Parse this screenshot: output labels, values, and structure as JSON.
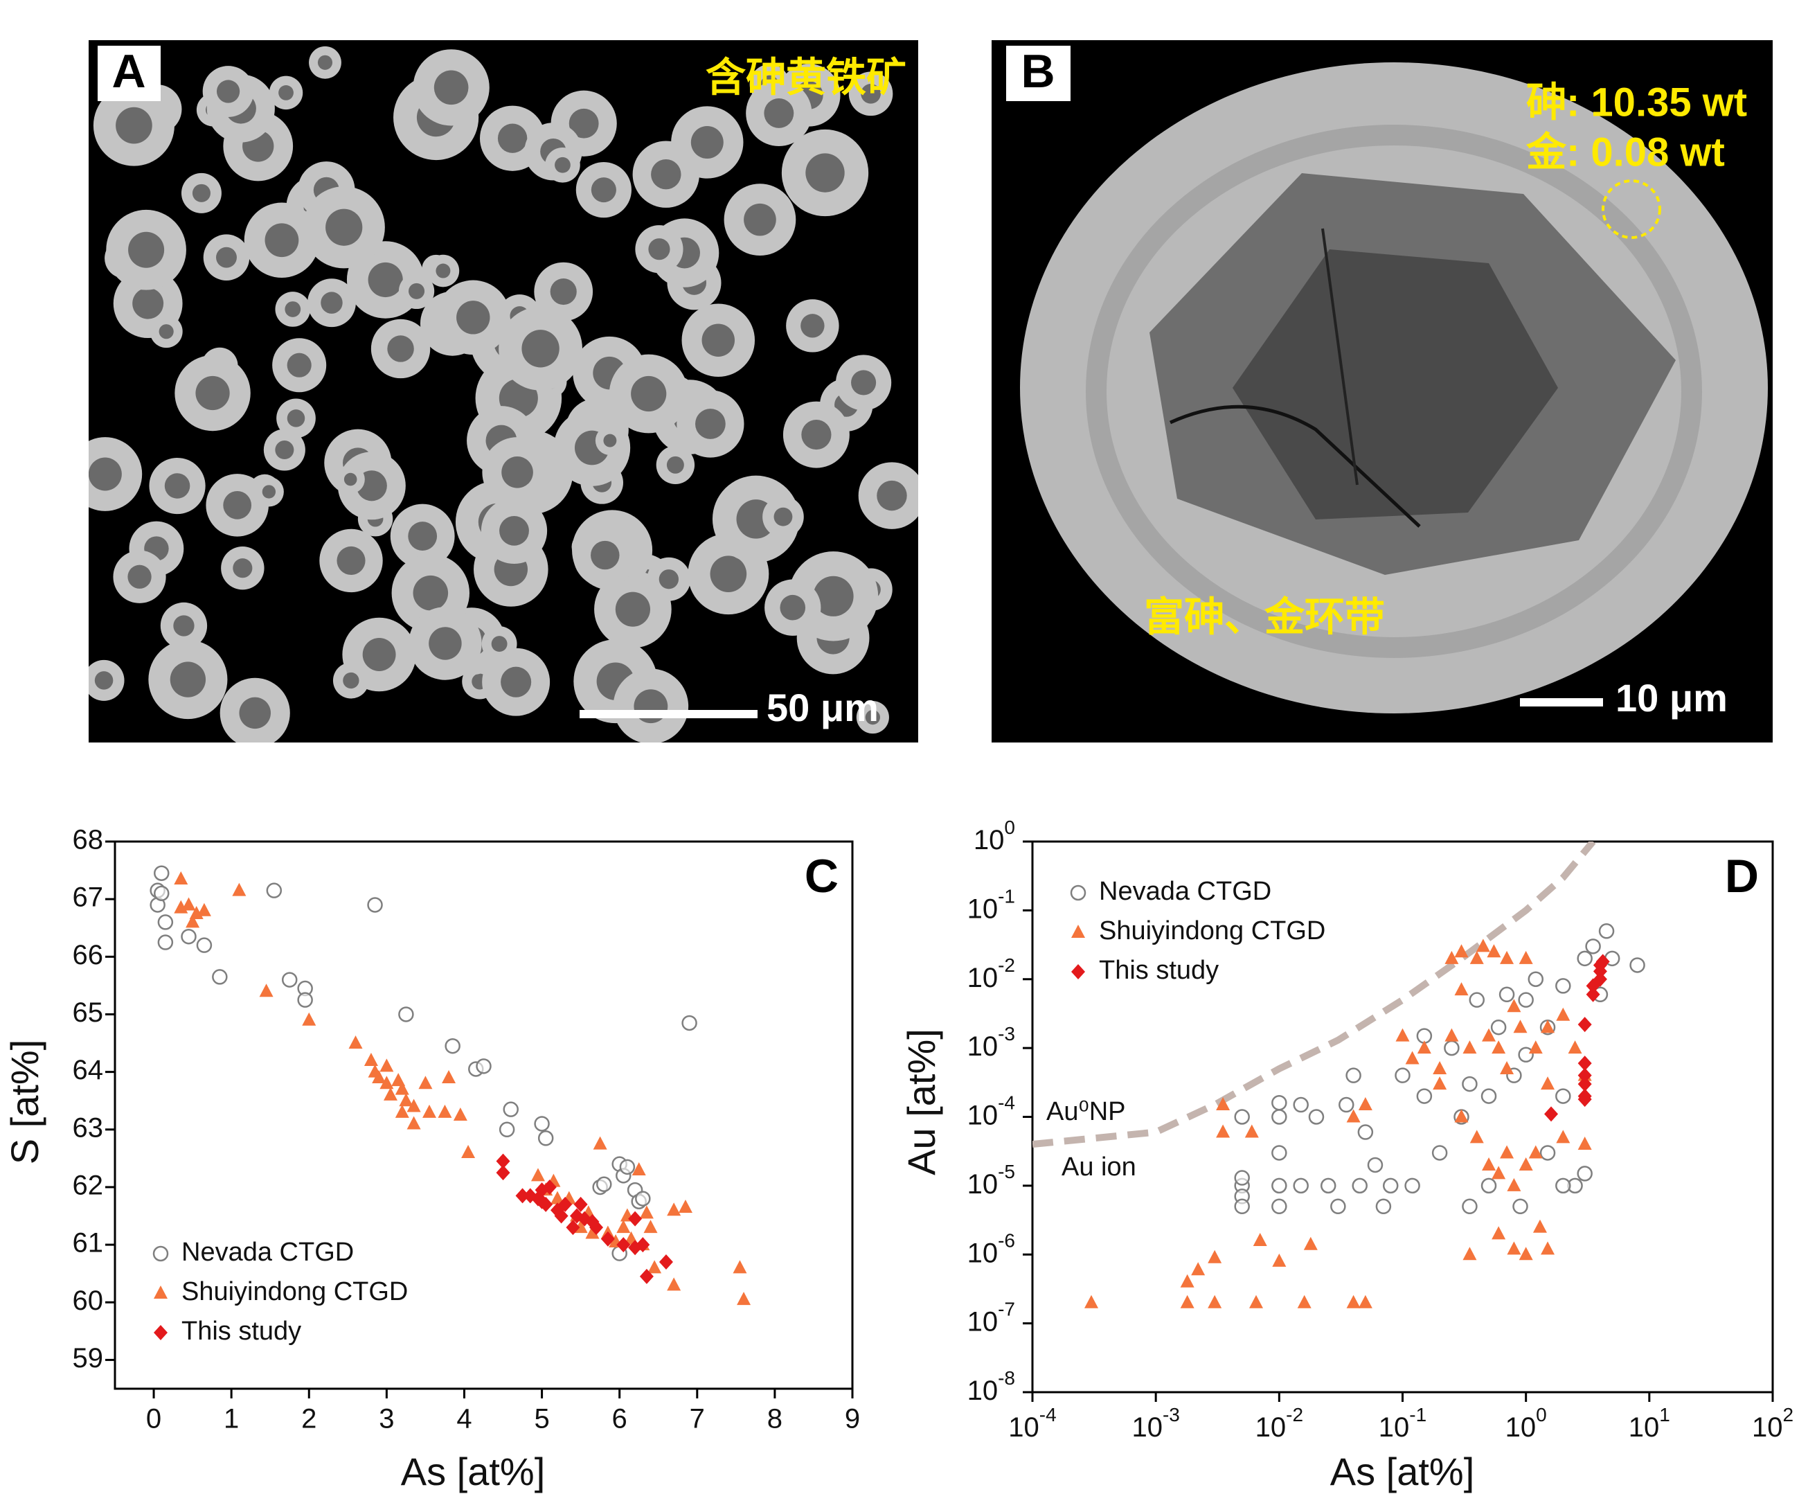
{
  "panels": [
    {
      "label": "A",
      "caption": "含砷黄铁矿",
      "scale_bar": "50 μm"
    },
    {
      "label": "B",
      "annotations": [
        "砷: 10.35 wt",
        "金: 0.08 wt"
      ],
      "caption": "富砷、金环带",
      "scale_bar": "10 μm"
    }
  ],
  "chart_data": [
    {
      "type": "scatter",
      "label": "C",
      "x_label": "As [at%]",
      "y_label": "S [at%]",
      "xlim": [
        -0.5,
        9
      ],
      "ylim": [
        58.5,
        68
      ],
      "xticks": [
        0,
        1,
        2,
        3,
        4,
        5,
        6,
        7,
        8,
        9
      ],
      "yticks": [
        59,
        60,
        61,
        62,
        63,
        64,
        65,
        66,
        67,
        68
      ],
      "legend": "lower left",
      "series": [
        {
          "name": "Nevada CTGD",
          "color": "#7f7f7f",
          "marker": "circle",
          "x": [
            0.05,
            0.1,
            0.05,
            0.1,
            0.15,
            0.15,
            0.45,
            0.65,
            0.85,
            1.55,
            1.75,
            1.95,
            1.95,
            2.85,
            3.25,
            3.85,
            4.15,
            4.25,
            4.6,
            5.0,
            5.05,
            5.75,
            5.8,
            6.0,
            6.05,
            6.1,
            6.2,
            6.25,
            6.3,
            6.0,
            6.9,
            4.55
          ],
          "values": [
            67.15,
            67.45,
            66.9,
            67.1,
            66.6,
            66.25,
            66.35,
            66.2,
            65.65,
            67.15,
            65.6,
            65.45,
            65.25,
            66.9,
            65.0,
            64.45,
            64.05,
            64.1,
            63.35,
            63.1,
            62.85,
            62.0,
            62.05,
            62.4,
            62.2,
            62.35,
            61.95,
            61.75,
            61.8,
            60.85,
            64.85,
            63.0
          ]
        },
        {
          "name": "Shuiyindong CTGD",
          "color": "#f4743b",
          "marker": "triangle",
          "x": [
            0.35,
            0.35,
            0.45,
            0.5,
            0.55,
            0.65,
            1.1,
            1.45,
            2.0,
            2.6,
            2.8,
            2.85,
            2.9,
            3.0,
            3.0,
            3.05,
            3.15,
            3.2,
            3.25,
            3.35,
            3.5,
            3.2,
            3.35,
            3.55,
            3.75,
            3.8,
            3.95,
            4.05,
            4.95,
            5.05,
            5.15,
            5.2,
            5.35,
            5.45,
            5.5,
            5.75,
            5.65,
            5.85,
            5.95,
            6.05,
            6.15,
            6.25,
            6.3,
            6.4,
            6.35,
            6.45,
            6.7,
            6.85,
            6.7,
            7.55,
            7.6,
            6.1,
            5.6
          ],
          "values": [
            67.35,
            66.85,
            66.9,
            66.6,
            66.75,
            66.8,
            67.15,
            65.4,
            64.9,
            64.5,
            64.2,
            64.0,
            63.9,
            64.1,
            63.8,
            63.6,
            63.85,
            63.7,
            63.5,
            63.4,
            63.8,
            63.3,
            63.1,
            63.3,
            63.3,
            63.9,
            63.25,
            62.6,
            62.2,
            61.95,
            62.1,
            61.8,
            61.8,
            61.5,
            61.3,
            62.75,
            61.2,
            61.2,
            61.05,
            61.3,
            61.1,
            62.3,
            61.0,
            61.3,
            61.55,
            60.6,
            61.6,
            61.65,
            60.3,
            60.6,
            60.05,
            61.5,
            61.55
          ]
        },
        {
          "name": "This study",
          "color": "#e31a1c",
          "marker": "diamond",
          "x": [
            4.5,
            4.5,
            4.75,
            4.85,
            4.95,
            5.0,
            5.05,
            5.1,
            5.2,
            5.25,
            5.3,
            5.45,
            5.5,
            5.55,
            5.65,
            5.7,
            5.85,
            6.05,
            6.2,
            6.2,
            6.3,
            6.35,
            6.6,
            5.0,
            5.4
          ],
          "values": [
            62.45,
            62.25,
            61.85,
            61.85,
            61.8,
            61.95,
            61.7,
            62.0,
            61.6,
            61.5,
            61.7,
            61.5,
            61.7,
            61.45,
            61.4,
            61.3,
            61.1,
            61.0,
            61.45,
            60.95,
            61.0,
            60.45,
            60.7,
            61.75,
            61.3
          ]
        }
      ]
    },
    {
      "type": "scatter",
      "label": "D",
      "x_label": "As [at%]",
      "y_label": "Au [at%]",
      "xscale": "log",
      "yscale": "log",
      "xlim": [
        0.0001,
        100
      ],
      "ylim": [
        1e-08,
        1
      ],
      "xticks": [
        {
          "value": 0.0001,
          "label": "10",
          "exponent": "-4"
        },
        {
          "value": 0.001,
          "label": "10",
          "exponent": "-3"
        },
        {
          "value": 0.01,
          "label": "10",
          "exponent": "-2"
        },
        {
          "value": 0.1,
          "label": "10",
          "exponent": "-1"
        },
        {
          "value": 1,
          "label": "10",
          "exponent": "0"
        },
        {
          "value": 10,
          "label": "10",
          "exponent": "1"
        },
        {
          "value": 100,
          "label": "10",
          "exponent": "2"
        }
      ],
      "yticks": [
        {
          "value": 1e-08,
          "label": "10",
          "exponent": "-8"
        },
        {
          "value": 1e-07,
          "label": "10",
          "exponent": "-7"
        },
        {
          "value": 1e-06,
          "label": "10",
          "exponent": "-6"
        },
        {
          "value": 1e-05,
          "label": "10",
          "exponent": "-5"
        },
        {
          "value": 0.0001,
          "label": "10",
          "exponent": "-4"
        },
        {
          "value": 0.001,
          "label": "10",
          "exponent": "-3"
        },
        {
          "value": 0.01,
          "label": "10",
          "exponent": "-2"
        },
        {
          "value": 0.1,
          "label": "10",
          "exponent": "-1"
        },
        {
          "value": 1,
          "label": "10",
          "exponent": "0"
        }
      ],
      "legend": "upper left",
      "annotations": [
        "Au⁰NP",
        "Au ion"
      ],
      "boundary": {
        "color": "#c4b4ae",
        "style": "dashed",
        "x": [
          0.0001,
          0.001,
          0.003,
          0.01,
          0.03,
          0.1,
          0.3,
          1,
          2,
          3.5
        ],
        "values": [
          4e-05,
          6e-05,
          0.00015,
          0.0005,
          0.0013,
          0.005,
          0.02,
          0.1,
          0.3,
          1
        ]
      },
      "series": [
        {
          "name": "Nevada CTGD",
          "color": "#7f7f7f",
          "marker": "circle",
          "x": [
            0.005,
            0.005,
            0.005,
            0.005,
            0.005,
            0.01,
            0.01,
            0.01,
            0.01,
            0.01,
            0.015,
            0.015,
            0.02,
            0.025,
            0.03,
            0.035,
            0.04,
            0.045,
            0.05,
            0.06,
            0.07,
            0.08,
            0.1,
            0.12,
            0.15,
            0.15,
            0.2,
            0.25,
            0.3,
            0.35,
            0.4,
            0.5,
            0.5,
            0.6,
            0.7,
            0.8,
            1.0,
            1.0,
            1.2,
            1.5,
            1.5,
            2.0,
            2.0,
            2.5,
            3.0,
            3.0,
            3.5,
            4.5,
            4.0,
            5.0,
            8.0,
            2.0,
            0.35,
            0.9
          ],
          "values": [
            0.0001,
            1e-05,
            7e-06,
            5e-06,
            1.3e-05,
            0.00016,
            0.0001,
            3e-05,
            1e-05,
            5e-06,
            0.00015,
            1e-05,
            0.0001,
            1e-05,
            5e-06,
            0.00015,
            0.0004,
            1e-05,
            6e-05,
            2e-05,
            5e-06,
            1e-05,
            0.0004,
            1e-05,
            0.0002,
            0.0015,
            3e-05,
            0.001,
            0.0001,
            0.0003,
            0.005,
            0.0002,
            1e-05,
            0.002,
            0.006,
            0.0004,
            0.005,
            0.0008,
            0.01,
            0.002,
            3e-05,
            0.008,
            0.0002,
            1e-05,
            1.5e-05,
            0.02,
            0.03,
            0.05,
            0.006,
            0.02,
            0.016,
            1e-05,
            5e-06,
            5e-06
          ]
        },
        {
          "name": "Shuiyindong CTGD",
          "color": "#f4743b",
          "marker": "triangle",
          "x": [
            0.0003,
            0.0018,
            0.0018,
            0.0022,
            0.003,
            0.003,
            0.0035,
            0.0035,
            0.006,
            0.0065,
            0.007,
            0.01,
            0.016,
            0.018,
            0.04,
            0.05,
            0.04,
            0.05,
            0.1,
            0.12,
            0.15,
            0.2,
            0.25,
            0.25,
            0.3,
            0.35,
            0.4,
            0.45,
            0.5,
            0.55,
            0.6,
            0.7,
            0.7,
            0.9,
            1.0,
            1.2,
            1.5,
            2.0,
            2.5,
            3.0,
            0.4,
            0.5,
            0.6,
            0.7,
            0.8,
            1.0,
            1.2,
            0.35,
            0.6,
            0.8,
            1.0,
            1.3,
            1.5,
            0.3,
            0.3,
            2.0,
            3.0,
            0.2,
            0.8,
            1.5
          ],
          "values": [
            2e-07,
            2e-07,
            4e-07,
            6e-07,
            2e-07,
            9e-07,
            0.00015,
            6e-05,
            6e-05,
            2e-07,
            1.6e-06,
            8e-07,
            2e-07,
            1.4e-06,
            2e-07,
            2e-07,
            0.0001,
            0.00015,
            0.0015,
            0.0007,
            0.001,
            0.0003,
            0.0015,
            0.02,
            0.025,
            0.001,
            0.02,
            0.03,
            0.0015,
            0.025,
            0.001,
            0.02,
            0.0005,
            0.002,
            0.02,
            0.001,
            0.002,
            0.003,
            0.001,
            0.0004,
            5e-05,
            2e-05,
            1.5e-05,
            3e-05,
            1e-05,
            2e-05,
            3e-05,
            1e-06,
            2e-06,
            1.2e-06,
            1e-06,
            2.5e-06,
            1.2e-06,
            0.007,
            0.0001,
            5e-05,
            4e-05,
            0.0005,
            0.004,
            0.0003
          ]
        },
        {
          "name": "This study",
          "color": "#e31a1c",
          "marker": "diamond",
          "x": [
            1.6,
            3.0,
            3.0,
            3.0,
            3.0,
            3.0,
            3.0,
            3.5,
            3.5,
            4.0,
            4.0,
            4.0,
            4.2
          ],
          "values": [
            0.00011,
            0.0002,
            0.00018,
            0.0003,
            0.0004,
            0.0006,
            0.0022,
            0.006,
            0.008,
            0.01,
            0.013,
            0.016,
            0.018
          ]
        }
      ]
    }
  ]
}
